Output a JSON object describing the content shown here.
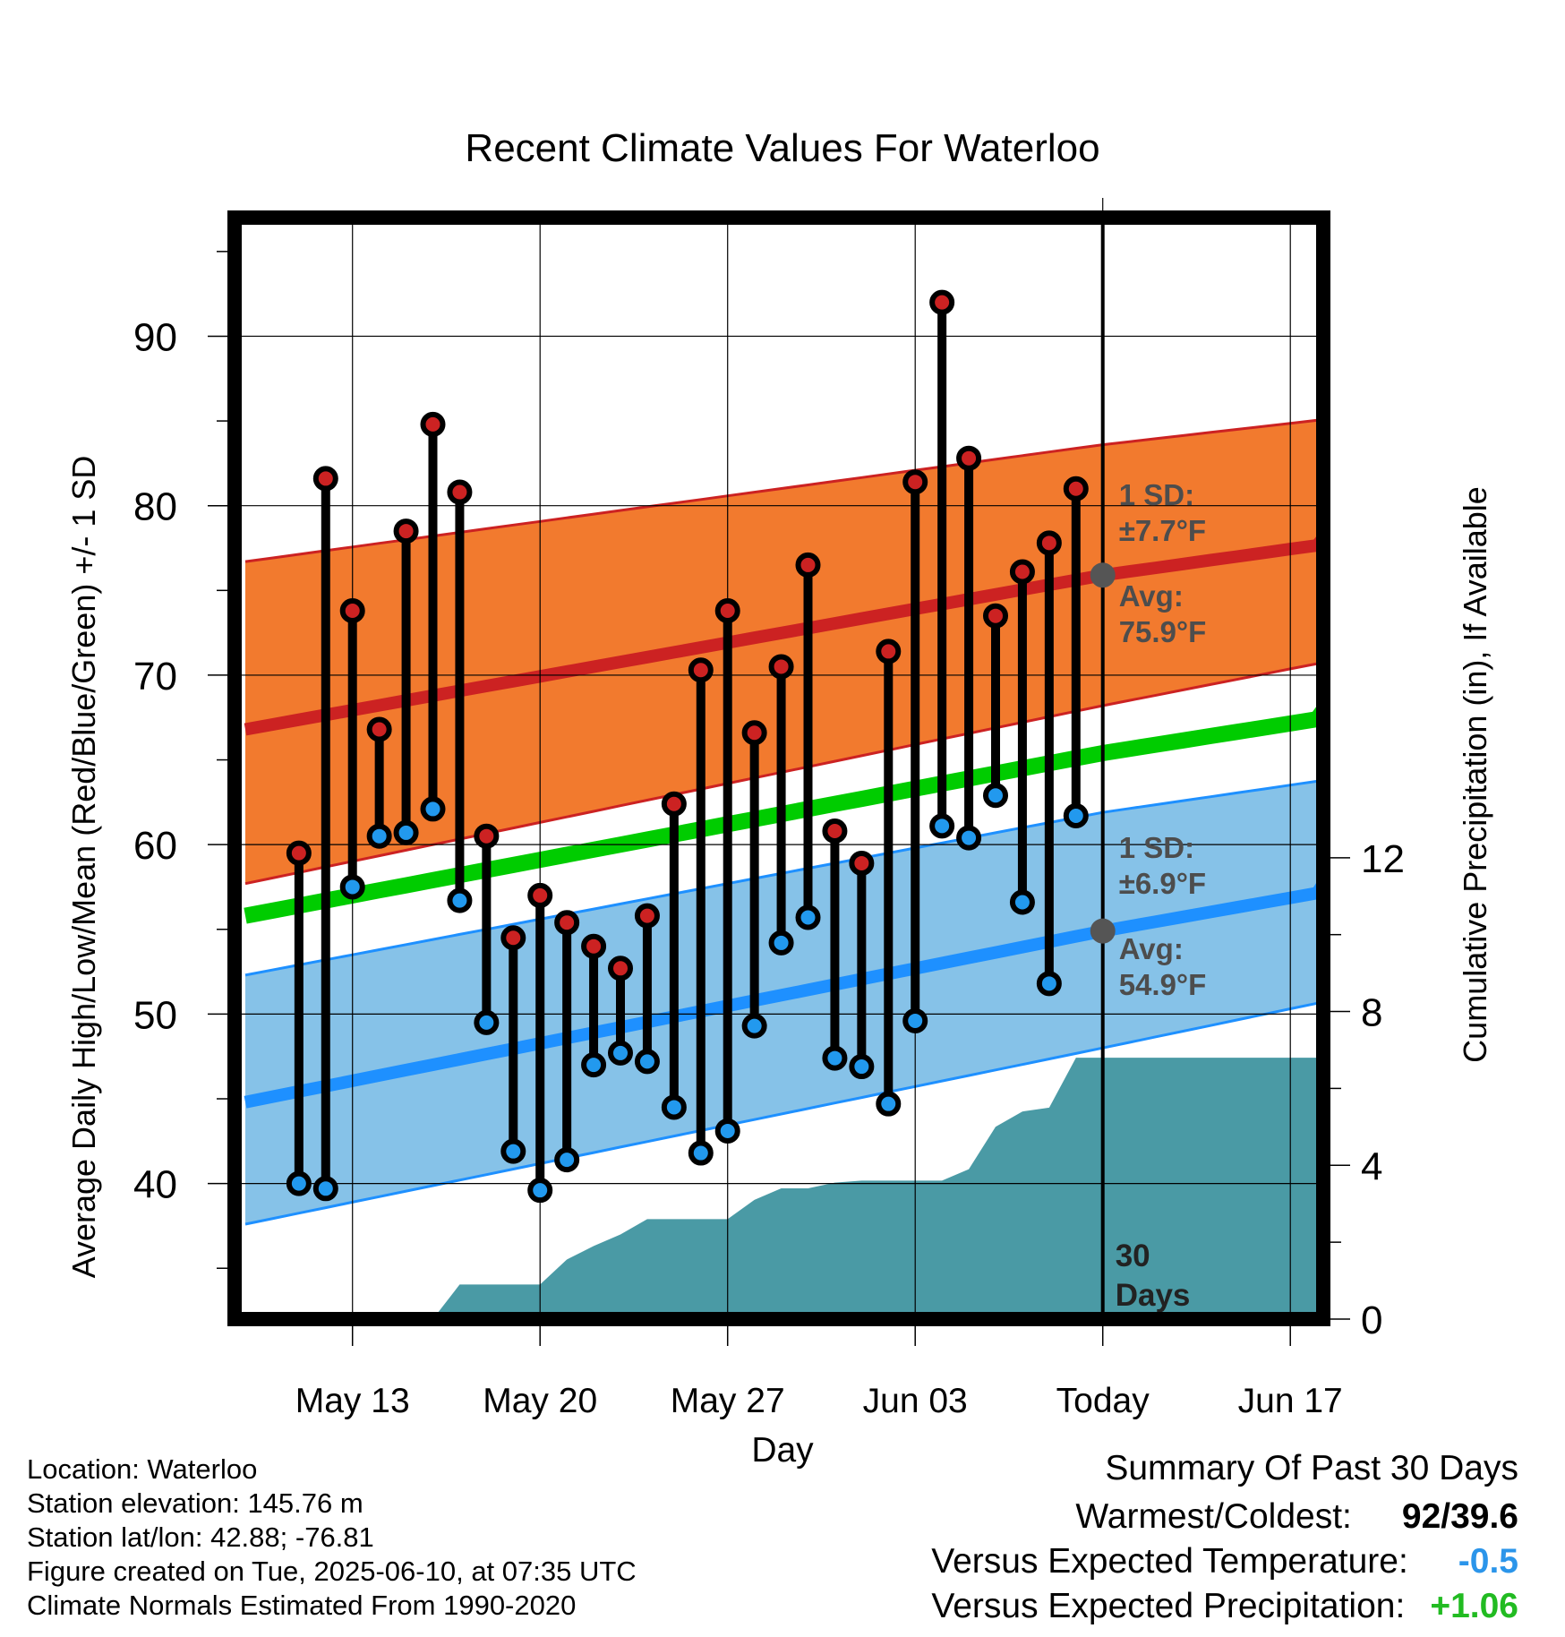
{
  "colors": {
    "high_marker": "#cc2222",
    "low_marker": "#2299ee",
    "high_band": "#f27a2e",
    "low_band": "#86c2e8",
    "high_avg_line": "#cc2222",
    "low_avg_line": "#1e90ff",
    "mean_line": "#00cc00",
    "precip_fill": "#4a9aa5",
    "annotation": "#4d4d4d",
    "neg_value": "#2b95ea",
    "pos_value": "#22bb22"
  },
  "chart_data": {
    "type": "line",
    "title": "Recent Climate Values For Waterloo",
    "xlabel": "Day",
    "ylabel": "Average Daily High/Low/Mean (Red/Blue/Green) +/- 1 SD",
    "y2label": "Cumulative Precipitation (in), If Available",
    "ylim": [
      32,
      97
    ],
    "y2lim": [
      0,
      28.65
    ],
    "xlim": [
      "2025-05-09",
      "2025-06-20"
    ],
    "x_ticks": [
      "May 13",
      "May 20",
      "May 27",
      "Jun 03",
      "Today",
      "Jun 17"
    ],
    "y_ticks": [
      40,
      50,
      60,
      70,
      80,
      90
    ],
    "y2_ticks": [
      0,
      4,
      8,
      12
    ],
    "grid": true,
    "today_line_label": [
      "30",
      "Days"
    ],
    "days": [
      "2025-05-11",
      "2025-05-12",
      "2025-05-13",
      "2025-05-14",
      "2025-05-15",
      "2025-05-16",
      "2025-05-17",
      "2025-05-18",
      "2025-05-19",
      "2025-05-20",
      "2025-05-21",
      "2025-05-22",
      "2025-05-23",
      "2025-05-24",
      "2025-05-25",
      "2025-05-26",
      "2025-05-27",
      "2025-05-28",
      "2025-05-29",
      "2025-05-30",
      "2025-05-31",
      "2025-06-01",
      "2025-06-02",
      "2025-06-03",
      "2025-06-04",
      "2025-06-05",
      "2025-06-06",
      "2025-06-07",
      "2025-06-08",
      "2025-06-09"
    ],
    "highs": [
      59.5,
      81.6,
      73.8,
      66.8,
      78.5,
      84.8,
      80.8,
      60.5,
      54.5,
      57.0,
      55.4,
      54.0,
      52.7,
      55.8,
      62.4,
      70.3,
      73.8,
      66.6,
      70.5,
      76.5,
      60.8,
      58.9,
      71.4,
      81.4,
      92.0,
      82.8,
      73.5,
      76.1,
      77.8,
      81.0
    ],
    "lows": [
      40.0,
      39.7,
      57.5,
      60.5,
      60.7,
      62.1,
      56.7,
      49.5,
      41.9,
      39.6,
      41.4,
      47.0,
      47.7,
      47.2,
      44.5,
      41.8,
      43.1,
      49.3,
      54.2,
      55.7,
      47.4,
      46.9,
      44.7,
      49.6,
      61.1,
      60.4,
      62.9,
      56.6,
      51.8,
      61.7
    ],
    "normals": {
      "x": [
        "2025-05-09",
        "2025-06-10",
        "2025-06-20"
      ],
      "high_avg": [
        66.8,
        75.9,
        78.1
      ],
      "high_sd_upper": [
        76.7,
        83.6,
        85.4
      ],
      "high_sd_lower": [
        57.7,
        68.2,
        71.3
      ],
      "low_avg": [
        44.8,
        54.9,
        57.7
      ],
      "low_sd_upper": [
        52.3,
        61.9,
        64.2
      ],
      "low_sd_lower": [
        37.6,
        48.0,
        51.3
      ],
      "mean": [
        55.8,
        65.4,
        67.9
      ]
    },
    "precipitation": {
      "x": [
        "2025-05-09",
        "2025-05-14",
        "2025-05-16",
        "2025-05-17",
        "2025-05-18",
        "2025-05-19",
        "2025-05-20",
        "2025-05-21",
        "2025-05-22",
        "2025-05-23",
        "2025-05-24",
        "2025-05-25",
        "2025-05-26",
        "2025-05-27",
        "2025-05-28",
        "2025-05-29",
        "2025-05-30",
        "2025-05-31",
        "2025-06-01",
        "2025-06-02",
        "2025-06-03",
        "2025-06-04",
        "2025-06-05",
        "2025-06-06",
        "2025-06-07",
        "2025-06-08",
        "2025-06-09",
        "2025-06-10",
        "2025-06-20"
      ],
      "cumulative": [
        0.0,
        0.0,
        0.0,
        0.9,
        0.9,
        0.9,
        0.9,
        1.55,
        1.9,
        2.2,
        2.6,
        2.6,
        2.6,
        2.6,
        3.1,
        3.4,
        3.4,
        3.55,
        3.6,
        3.6,
        3.6,
        3.6,
        3.9,
        5.0,
        5.4,
        5.5,
        6.8,
        6.8,
        6.8
      ]
    },
    "annotations": {
      "high_sd": [
        "1 SD:",
        "±7.7°F"
      ],
      "high_avg": [
        "Avg:",
        "75.9°F"
      ],
      "low_sd": [
        "1 SD:",
        "±6.9°F"
      ],
      "low_avg": [
        "Avg:",
        "54.9°F"
      ]
    }
  },
  "info": {
    "location": "Location: Waterloo",
    "elevation": "Station elevation: 145.76 m",
    "latlon": "Station lat/lon: 42.88; -76.81",
    "created": "Figure created on Tue, 2025-06-10, at 07:35 UTC",
    "normals": "Climate Normals Estimated From 1990-2020"
  },
  "summary": {
    "title": "Summary Of Past 30 Days",
    "warmest_label": "Warmest/Coldest:",
    "warmest_value": "92/39.6",
    "temp_label": "Versus Expected Temperature:",
    "temp_value": "-0.5",
    "precip_label": "Versus Expected Precipitation:",
    "precip_value": "+1.06"
  }
}
